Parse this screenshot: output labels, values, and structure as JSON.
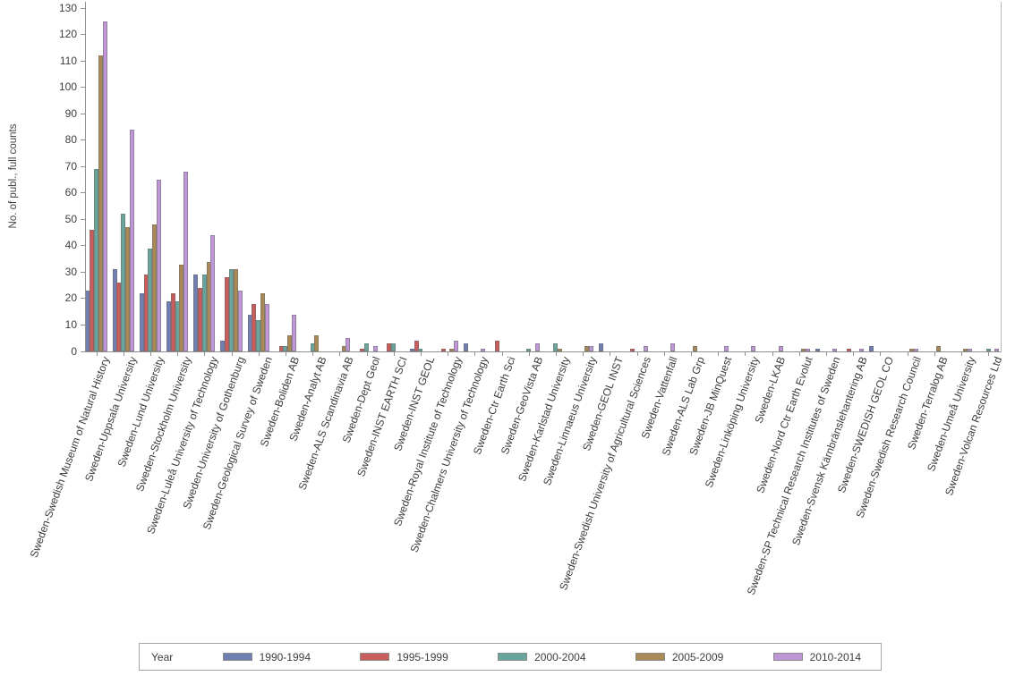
{
  "chart_data": {
    "type": "bar",
    "title": "",
    "ylabel": "No. of publ., full counts",
    "xlabel": "",
    "ylim": [
      0,
      130
    ],
    "ytick_step": 10,
    "yticks": [
      0,
      10,
      20,
      30,
      40,
      50,
      60,
      70,
      80,
      90,
      100,
      110,
      120,
      130
    ],
    "grid": false,
    "legend_position": "bottom",
    "legend_title": "Year",
    "categories": [
      "Sweden-Swedish Museum of Natural History",
      "Sweden-Uppsala University",
      "Sweden-Lund University",
      "Sweden-Stockholm University",
      "Sweden-Luleå University of Technology",
      "Sweden-University of Gothenburg",
      "Sweden-Geological Survey of Sweden",
      "Sweden-Boliden AB",
      "Sweden-Analyt AB",
      "Sweden-ALS Scandinavia AB",
      "Sweden-Dept Geol",
      "Sweden-INST EARTH SCI",
      "Sweden-INST GEOL",
      "Sweden-Royal Institute of Technology",
      "Sweden-Chalmers University of Technology",
      "Sweden-Ctr Earth Sci",
      "Sweden-GeoVista AB",
      "Sweden-Karlstad University",
      "Sweden-Linnaeus University",
      "Sweden-GEOL INST",
      "Sweden-Swedish University of Agricultural Sciences",
      "Sweden-Vattenfall",
      "Sweden-ALS Lab Grp",
      "Sweden-JB MinQuest",
      "Sweden-Linköping University",
      "Sweden-LKAB",
      "Sweden-Nord Ctr Earth Evolut",
      "Sweden-SP Technical Research Institutes of Sweden",
      "Sweden-Svensk Kärnbränslehantering AB",
      "Sweden-SWEDISH GEOL CO",
      "Sweden-Swedish Research Council",
      "Sweden-Terralog AB",
      "Sweden-Umeå University",
      "Sweden-Volcan Resources Ltd"
    ],
    "series": [
      {
        "name": "1990-1994",
        "color": "#7080b2",
        "values": [
          23,
          31,
          22,
          19,
          29,
          4,
          14,
          0,
          0,
          0,
          0,
          0,
          1,
          0,
          3,
          0,
          0,
          0,
          0,
          3,
          0,
          0,
          0,
          0,
          0,
          0,
          0,
          1,
          0,
          2,
          0,
          0,
          0,
          0
        ]
      },
      {
        "name": "1995-1999",
        "color": "#c85d5c",
        "values": [
          46,
          26,
          29,
          22,
          24,
          28,
          18,
          2,
          0,
          0,
          1,
          3,
          4,
          1,
          0,
          4,
          0,
          0,
          0,
          0,
          1,
          0,
          0,
          0,
          0,
          0,
          0,
          0,
          1,
          0,
          0,
          0,
          0,
          0
        ]
      },
      {
        "name": "2000-2004",
        "color": "#69a59d",
        "values": [
          69,
          52,
          39,
          19,
          29,
          31,
          12,
          2,
          3,
          0,
          3,
          3,
          1,
          0,
          0,
          0,
          1,
          3,
          0,
          0,
          0,
          0,
          0,
          0,
          0,
          0,
          0,
          0,
          0,
          0,
          0,
          0,
          0,
          1
        ]
      },
      {
        "name": "2005-2009",
        "color": "#a98a56",
        "values": [
          112,
          47,
          48,
          33,
          34,
          31,
          22,
          6,
          6,
          2,
          0,
          0,
          0,
          1,
          0,
          0,
          0,
          1,
          2,
          0,
          0,
          0,
          2,
          0,
          0,
          0,
          1,
          0,
          0,
          0,
          1,
          2,
          1,
          0
        ]
      },
      {
        "name": "2010-2014",
        "color": "#bf97d6",
        "values": [
          125,
          84,
          65,
          68,
          44,
          23,
          18,
          14,
          0,
          5,
          2,
          0,
          0,
          4,
          1,
          0,
          3,
          0,
          2,
          0,
          2,
          3,
          0,
          2,
          2,
          2,
          1,
          1,
          1,
          0,
          1,
          0,
          1,
          1
        ]
      }
    ]
  }
}
